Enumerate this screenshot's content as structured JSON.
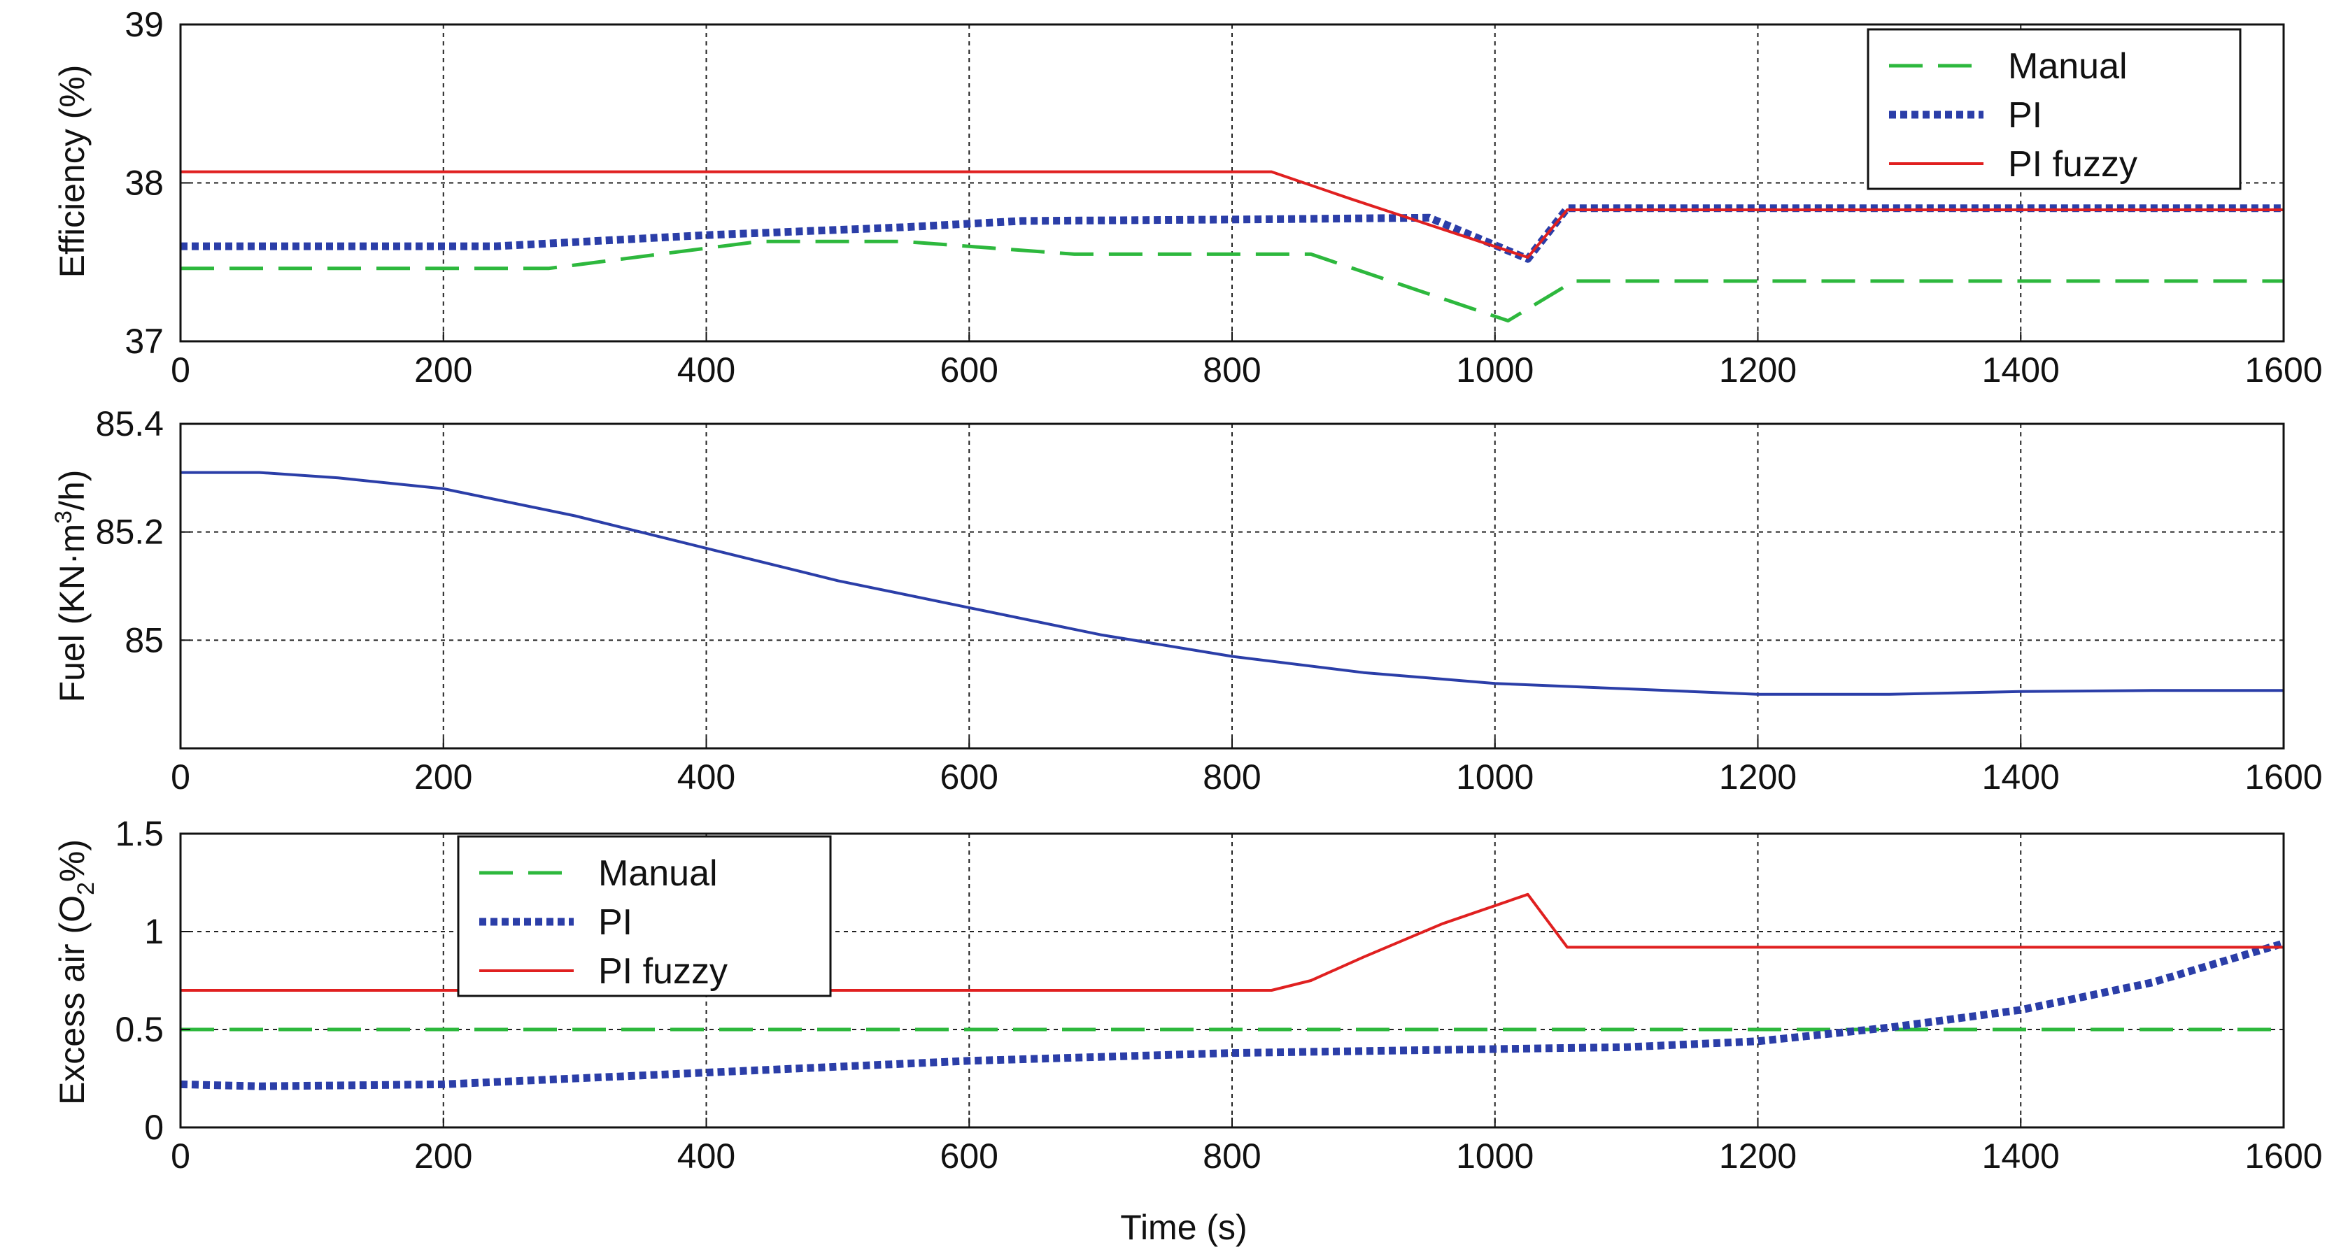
{
  "chart_data": [
    {
      "type": "line",
      "title": "",
      "xlabel": "",
      "ylabel": "Efficiency (%)",
      "xlim": [
        0,
        1600
      ],
      "ylim": [
        37,
        39
      ],
      "xticks": [
        0,
        200,
        400,
        600,
        800,
        1000,
        1200,
        1400,
        1600
      ],
      "yticks": [
        37,
        38,
        39
      ],
      "grid": true,
      "legend": "top-right",
      "series": [
        {
          "name": "Manual",
          "style": "dashed",
          "color": "#2db83d",
          "x": [
            0,
            280,
            440,
            550,
            680,
            860,
            1010,
            1060,
            1600
          ],
          "y": [
            37.46,
            37.46,
            37.63,
            37.63,
            37.55,
            37.55,
            37.13,
            37.38,
            37.38
          ]
        },
        {
          "name": "PI",
          "style": "dotted",
          "color": "#2b3ea8",
          "x": [
            0,
            240,
            400,
            550,
            640,
            820,
            950,
            1025,
            1055,
            1600
          ],
          "y": [
            37.6,
            37.6,
            37.67,
            37.72,
            37.76,
            37.77,
            37.78,
            37.52,
            37.84,
            37.84
          ],
          "markers_name": "PI"
        },
        {
          "name": "PI fuzzy",
          "style": "solid",
          "color": "#e02020",
          "x": [
            0,
            830,
            890,
            1025,
            1055,
            1600
          ],
          "y": [
            38.07,
            38.07,
            37.9,
            37.53,
            37.83,
            37.83
          ]
        }
      ]
    },
    {
      "type": "line",
      "title": "",
      "xlabel": "",
      "ylabel": "Fuel (KN·m³/h)",
      "ylabel_main": "Fuel (KN·m",
      "ylabel_sup": "3",
      "ylabel_end": "/h)",
      "xlim": [
        0,
        1600
      ],
      "ylim": [
        84.8,
        85.4
      ],
      "xticks": [
        0,
        200,
        400,
        600,
        800,
        1000,
        1200,
        1400,
        1600
      ],
      "yticks": [
        85,
        85.2,
        85.4
      ],
      "grid": true,
      "series": [
        {
          "color": "#2b3ea8",
          "style": "solid",
          "x": [
            0,
            60,
            120,
            200,
            300,
            400,
            500,
            600,
            700,
            800,
            900,
            1000,
            1100,
            1200,
            1300,
            1400,
            1500,
            1600
          ],
          "y": [
            85.31,
            85.31,
            85.3,
            85.28,
            85.23,
            85.17,
            85.11,
            85.06,
            85.01,
            84.97,
            84.94,
            84.92,
            84.91,
            84.9,
            84.9,
            84.905,
            84.907,
            84.907
          ]
        }
      ]
    },
    {
      "type": "line",
      "title": "",
      "xlabel": "Time (s)",
      "ylabel": "Excess air (O₂%)",
      "ylabel_main": "Excess air (O",
      "ylabel_sub": "2",
      "ylabel_end": "%)",
      "xlim": [
        0,
        1600
      ],
      "ylim": [
        0,
        1.5
      ],
      "xticks": [
        0,
        200,
        400,
        600,
        800,
        1000,
        1200,
        1400,
        1600
      ],
      "yticks": [
        0,
        0.5,
        1,
        1.5
      ],
      "grid": true,
      "legend": "top-left",
      "series": [
        {
          "name": "Manual",
          "style": "dashed",
          "color": "#2db83d",
          "x": [
            0,
            1600
          ],
          "y": [
            0.5,
            0.5
          ]
        },
        {
          "name": "PI",
          "style": "dotted",
          "color": "#2b3ea8",
          "x": [
            0,
            60,
            200,
            400,
            600,
            800,
            1000,
            1100,
            1200,
            1300,
            1400,
            1500,
            1600
          ],
          "y": [
            0.22,
            0.21,
            0.22,
            0.28,
            0.34,
            0.38,
            0.4,
            0.41,
            0.44,
            0.51,
            0.6,
            0.74,
            0.94
          ]
        },
        {
          "name": "PI fuzzy",
          "style": "solid",
          "color": "#e02020",
          "x": [
            0,
            830,
            860,
            900,
            960,
            1025,
            1055,
            1600
          ],
          "y": [
            0.7,
            0.7,
            0.75,
            0.87,
            1.04,
            1.19,
            0.92,
            0.92
          ]
        }
      ]
    }
  ],
  "legends": {
    "top": [
      "Manual",
      "PI",
      "PI fuzzy"
    ],
    "bottom": [
      "Manual",
      "PI",
      "PI fuzzy"
    ]
  }
}
